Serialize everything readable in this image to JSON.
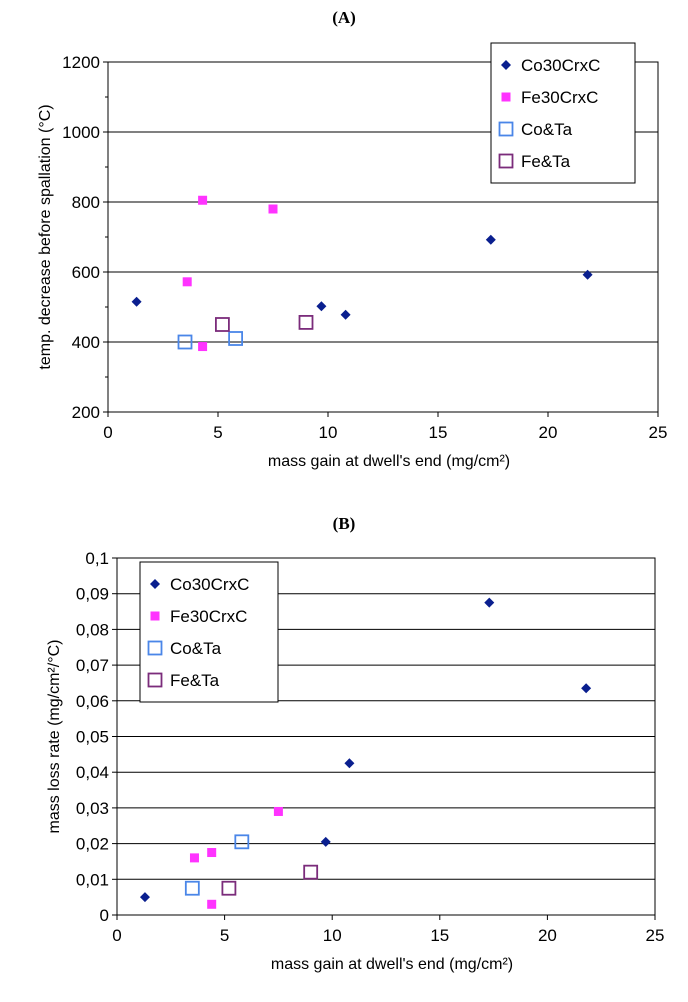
{
  "panels": [
    {
      "label": "(A)",
      "chart_data": {
        "type": "scatter",
        "xlabel": "mass gain at dwell's end (mg/cm²)",
        "ylabel": "temp. decrease before spallation (°C)",
        "xlim": [
          0,
          25
        ],
        "ylim": [
          200,
          1200
        ],
        "x_ticks": [
          0,
          5,
          10,
          15,
          20,
          25
        ],
        "x_tick_labels": [
          "0",
          "5",
          "10",
          "15",
          "20",
          "25"
        ],
        "y_ticks": [
          200,
          400,
          600,
          800,
          1000,
          1200
        ],
        "y_tick_labels": [
          "200",
          "400",
          "600",
          "800",
          "1000",
          "1200"
        ],
        "grid": "horizontal",
        "legend_position": "top-right",
        "series": [
          {
            "name": "Co30CrxC",
            "marker": "diamond",
            "color": "#0a1f8f",
            "points": [
              [
                1.3,
                515
              ],
              [
                9.7,
                502
              ],
              [
                10.8,
                478
              ],
              [
                17.4,
                692
              ],
              [
                21.8,
                592
              ]
            ]
          },
          {
            "name": "Fe30CrxC",
            "marker": "square",
            "color": "#ff33ff",
            "points": [
              [
                3.6,
                572
              ],
              [
                4.3,
                805
              ],
              [
                4.3,
                387
              ],
              [
                7.5,
                780
              ]
            ]
          },
          {
            "name": "Co&Ta",
            "marker": "open-square",
            "color": "#4a86e8",
            "points": [
              [
                3.5,
                400
              ],
              [
                5.8,
                410
              ]
            ]
          },
          {
            "name": "Fe&Ta",
            "marker": "open-square",
            "color": "#7b2c7b",
            "points": [
              [
                5.2,
                450
              ],
              [
                9.0,
                456
              ]
            ]
          }
        ]
      }
    },
    {
      "label": "(B)",
      "chart_data": {
        "type": "scatter",
        "xlabel": "mass gain at dwell's end (mg/cm²)",
        "ylabel": "mass loss rate (mg/cm²/°C)",
        "xlim": [
          0,
          25
        ],
        "ylim": [
          0,
          0.1
        ],
        "x_ticks": [
          0,
          5,
          10,
          15,
          20,
          25
        ],
        "x_tick_labels": [
          "0",
          "5",
          "10",
          "15",
          "20",
          "25"
        ],
        "y_ticks": [
          0,
          0.01,
          0.02,
          0.03,
          0.04,
          0.05,
          0.06,
          0.07,
          0.08,
          0.09,
          0.1
        ],
        "y_tick_labels": [
          "0",
          "0,01",
          "0,02",
          "0,03",
          "0,04",
          "0,05",
          "0,06",
          "0,07",
          "0,08",
          "0,09",
          "0,1"
        ],
        "grid": "horizontal",
        "legend_position": "top-left",
        "series": [
          {
            "name": "Co30CrxC",
            "marker": "diamond",
            "color": "#0a1f8f",
            "points": [
              [
                1.3,
                0.005
              ],
              [
                9.7,
                0.0205
              ],
              [
                10.8,
                0.0425
              ],
              [
                17.3,
                0.0875
              ],
              [
                21.8,
                0.0635
              ]
            ]
          },
          {
            "name": "Fe30CrxC",
            "marker": "square",
            "color": "#ff33ff",
            "points": [
              [
                3.6,
                0.016
              ],
              [
                4.4,
                0.0175
              ],
              [
                4.4,
                0.003
              ],
              [
                7.5,
                0.029
              ]
            ]
          },
          {
            "name": "Co&Ta",
            "marker": "open-square",
            "color": "#4a86e8",
            "points": [
              [
                3.5,
                0.0075
              ],
              [
                5.8,
                0.0205
              ]
            ]
          },
          {
            "name": "Fe&Ta",
            "marker": "open-square",
            "color": "#7b2c7b",
            "points": [
              [
                5.2,
                0.0075
              ],
              [
                9.0,
                0.012
              ]
            ]
          }
        ]
      }
    }
  ]
}
